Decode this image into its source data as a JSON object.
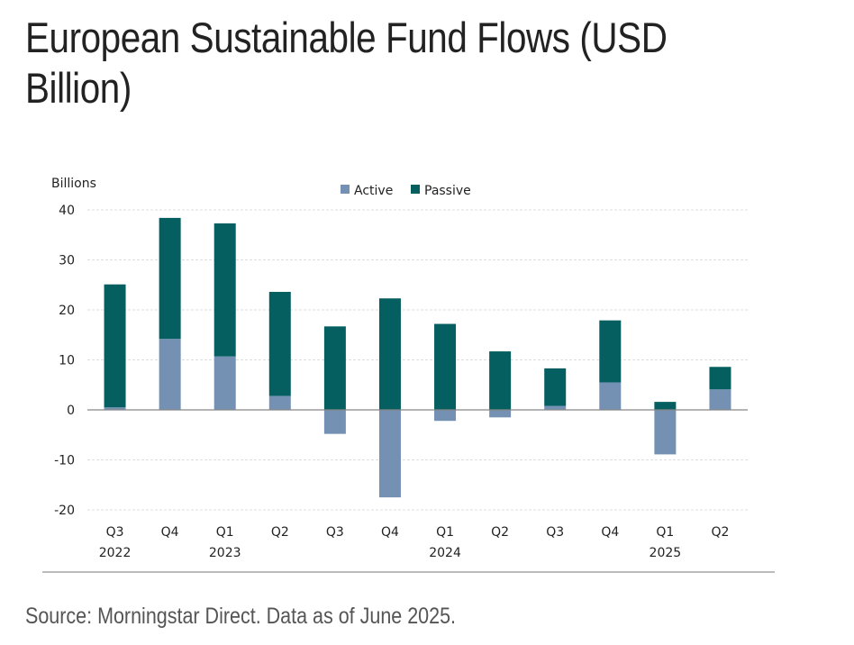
{
  "title": "European Sustainable Fund Flows (USD Billion)",
  "source": "Source: Morningstar Direct. Data as of June 2025.",
  "chart_data": {
    "type": "bar",
    "stacked": true,
    "ylabel": "Billions",
    "ylim": [
      -20,
      40
    ],
    "yticks": [
      40,
      30,
      20,
      10,
      0,
      -10,
      -20
    ],
    "grid": true,
    "legend_position": "top-center",
    "categories": [
      "Q3 2022",
      "Q4 2022",
      "Q1 2023",
      "Q2 2023",
      "Q3 2023",
      "Q4 2023",
      "Q1 2024",
      "Q2 2024",
      "Q3 2024",
      "Q4 2024",
      "Q1 2025",
      "Q2 2025"
    ],
    "category_labels": [
      [
        "Q3",
        "2022"
      ],
      [
        "Q4",
        ""
      ],
      [
        "Q1",
        "2023"
      ],
      [
        "Q2",
        ""
      ],
      [
        "Q3",
        ""
      ],
      [
        "Q4",
        ""
      ],
      [
        "Q1",
        "2024"
      ],
      [
        "Q2",
        ""
      ],
      [
        "Q3",
        ""
      ],
      [
        "Q4",
        ""
      ],
      [
        "Q1",
        "2025"
      ],
      [
        "Q2",
        ""
      ]
    ],
    "series": [
      {
        "name": "Active",
        "color": "#7490b3",
        "values": [
          0.5,
          14.2,
          10.7,
          2.8,
          -4.8,
          -17.5,
          -2.2,
          -1.5,
          0.8,
          5.5,
          -8.9,
          4.1
        ]
      },
      {
        "name": "Passive",
        "color": "#055f60",
        "values": [
          24.6,
          24.2,
          26.6,
          20.8,
          16.7,
          22.3,
          17.2,
          11.7,
          7.5,
          12.4,
          1.6,
          4.5
        ]
      }
    ]
  }
}
